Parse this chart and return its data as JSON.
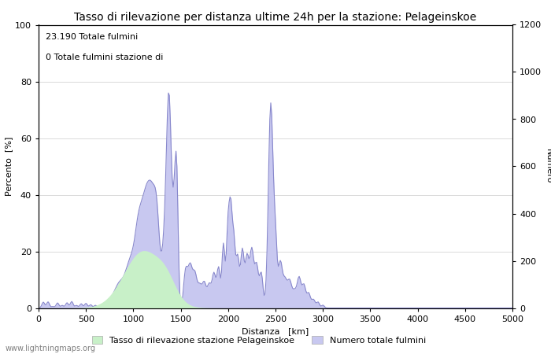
{
  "title": "Tasso di rilevazione per distanza ultime 24h per la stazione: Pelageinskoe",
  "xlabel": "Distanza   [km]",
  "ylabel_left": "Percento  [%]",
  "ylabel_right": "Numero",
  "annotation_line1": "23.190 Totale fulmini",
  "annotation_line2": "0 Totale fulmini stazione di",
  "legend_label1": "Tasso di rilevazione stazione Pelageinskoe",
  "legend_label2": "Numero totale fulmini",
  "watermark": "www.lightningmaps.org",
  "xlim": [
    0,
    5000
  ],
  "ylim_left": [
    0,
    100
  ],
  "ylim_right": [
    0,
    1200
  ],
  "xticks": [
    0,
    500,
    1000,
    1500,
    2000,
    2500,
    3000,
    3500,
    4000,
    4500,
    5000
  ],
  "yticks_left": [
    0,
    20,
    40,
    60,
    80,
    100
  ],
  "yticks_right": [
    0,
    200,
    400,
    600,
    800,
    1000,
    1200
  ],
  "fill_color_total": "#c8c8f0",
  "fill_color_rate": "#c8f0c8",
  "line_color": "#8888cc",
  "background_color": "#ffffff",
  "grid_color": "#cccccc",
  "title_fontsize": 10,
  "label_fontsize": 8,
  "tick_fontsize": 8,
  "annotation_fontsize": 8,
  "legend_fontsize": 8,
  "watermark_fontsize": 7
}
